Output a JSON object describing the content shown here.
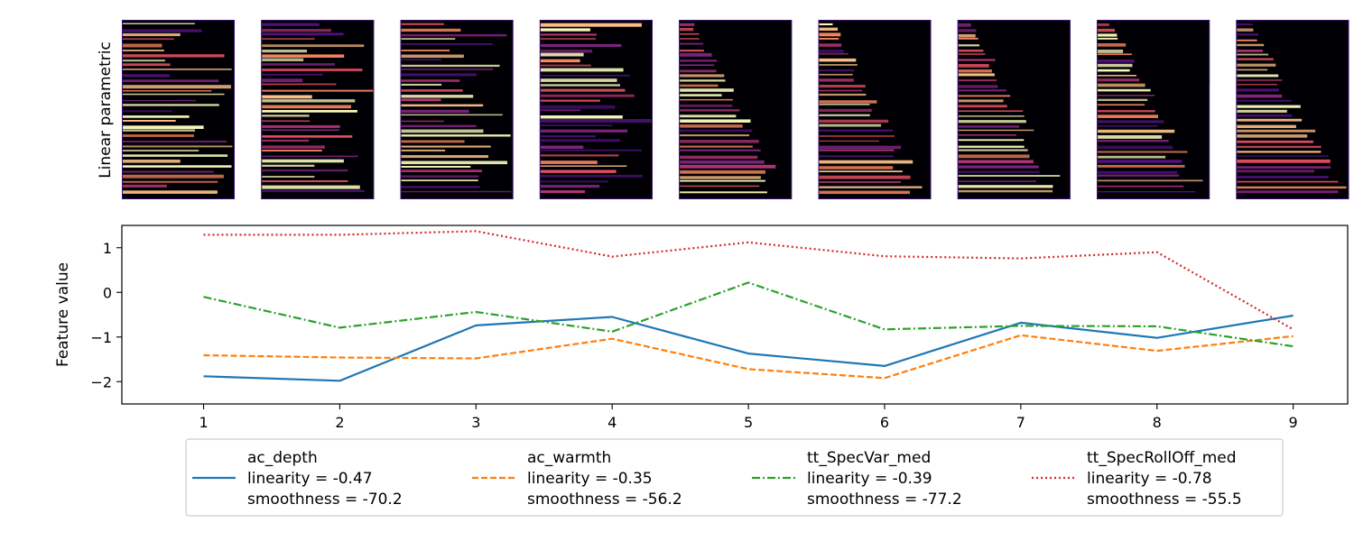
{
  "spectrogram_row": {
    "ylabel": "Linear parametric",
    "panel_count": 9,
    "colormap": "magma"
  },
  "chart_data": {
    "type": "line",
    "title": "",
    "xlabel": "",
    "ylabel": "Feature value",
    "x": [
      1,
      2,
      3,
      4,
      5,
      6,
      7,
      8,
      9
    ],
    "xlim": [
      0.4,
      9.4
    ],
    "ylim": [
      -2.5,
      1.5
    ],
    "xticks": [
      "1",
      "2",
      "3",
      "4",
      "5",
      "6",
      "7",
      "8",
      "9"
    ],
    "yticks": [
      {
        "value": 1,
        "label": "1"
      },
      {
        "value": 0,
        "label": "0"
      },
      {
        "value": -1,
        "label": "−1"
      },
      {
        "value": -2,
        "label": "−2"
      }
    ],
    "grid": false,
    "legend_position": "bottom-center",
    "series": [
      {
        "name": "ac_depth",
        "linearity": "linearity = -0.47",
        "smoothness": "smoothness = -70.2",
        "color": "#1f77b4",
        "dash": "solid",
        "values": [
          -1.88,
          -1.98,
          -0.74,
          -0.55,
          -1.37,
          -1.65,
          -0.68,
          -1.02,
          -0.52
        ]
      },
      {
        "name": "ac_warmth",
        "linearity": "linearity = -0.35",
        "smoothness": "smoothness = -56.2",
        "color": "#ff7f0e",
        "dash": "dashed",
        "values": [
          -1.41,
          -1.46,
          -1.48,
          -1.04,
          -1.72,
          -1.92,
          -0.96,
          -1.31,
          -0.98
        ]
      },
      {
        "name": "tt_SpecVar_med",
        "linearity": "linearity = -0.39",
        "smoothness": "smoothness = -77.2",
        "color": "#2ca02c",
        "dash": "dashdot",
        "values": [
          -0.1,
          -0.79,
          -0.44,
          -0.88,
          0.22,
          -0.83,
          -0.75,
          -0.76,
          -1.21
        ]
      },
      {
        "name": "tt_SpecRollOff_med",
        "linearity": "linearity = -0.78",
        "smoothness": "smoothness = -55.5",
        "color": "#d62728",
        "dash": "dotted",
        "values": [
          1.29,
          1.29,
          1.37,
          0.8,
          1.12,
          0.81,
          0.76,
          0.9,
          -0.83
        ]
      }
    ]
  }
}
